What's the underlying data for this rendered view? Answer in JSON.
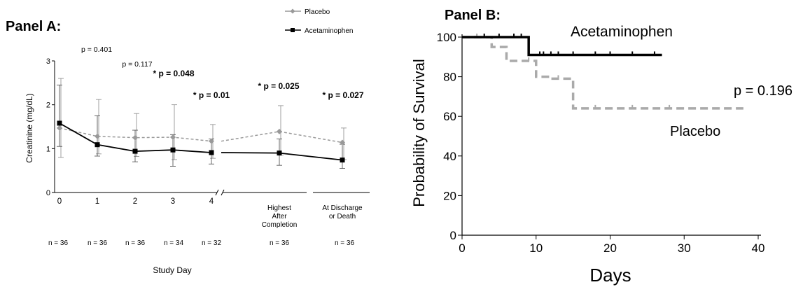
{
  "panels": [
    {
      "title": "Panel A:",
      "chart_data": {
        "type": "line",
        "xlabel": "Study Day",
        "ylabel": "Creatinine (mg/dL)",
        "ylim": [
          0,
          3
        ],
        "yticks": [
          "0",
          "1",
          "2",
          "3"
        ],
        "categories": [
          "0",
          "1",
          "2",
          "3",
          "4",
          "Highest After Completion",
          "At Discharge or Death"
        ],
        "category_lines": [
          [
            "0"
          ],
          [
            "1"
          ],
          [
            "2"
          ],
          [
            "3"
          ],
          [
            "4"
          ],
          [
            "Highest",
            "After",
            "Completion"
          ],
          [
            "At Discharge",
            "or Death"
          ]
        ],
        "legend_position": "top-right",
        "series": [
          {
            "name": "Placebo",
            "color": "#999999",
            "style": "dashed",
            "marker": "diamond",
            "values": [
              1.47,
              1.28,
              1.25,
              1.26,
              1.17,
              1.39,
              1.14
            ],
            "error_upper": [
              2.6,
              2.12,
              1.8,
              2.0,
              1.55,
              1.98,
              1.47
            ],
            "error_lower": [
              0.8,
              0.88,
              0.82,
              0.75,
              0.78,
              0.85,
              0.75
            ]
          },
          {
            "name": "Acetaminophen",
            "color": "#000000",
            "style": "solid",
            "marker": "square",
            "values": [
              1.58,
              1.09,
              0.94,
              0.97,
              0.91,
              0.9,
              0.74
            ],
            "error_upper": [
              2.45,
              1.75,
              1.42,
              1.32,
              1.22,
              1.22,
              1.1
            ],
            "error_lower": [
              1.05,
              0.83,
              0.7,
              0.6,
              0.65,
              0.62,
              0.55
            ]
          }
        ],
        "p_values": [
          "p = 0.401",
          "p = 0.117",
          "* p = 0.048",
          "* p = 0.01",
          "* p = 0.025",
          "* p = 0.027"
        ],
        "n_labels": [
          "n = 36",
          "n = 36",
          "n = 36",
          "n = 34",
          "n = 32",
          "n = 36",
          "n = 36"
        ]
      }
    },
    {
      "title": "Panel B:",
      "chart_data": {
        "type": "line",
        "step": true,
        "xlabel": "Days",
        "ylabel": "Probability of Survival",
        "xlim": [
          0,
          40
        ],
        "ylim": [
          0,
          100
        ],
        "xticks": [
          "0",
          "10",
          "20",
          "30",
          "40"
        ],
        "yticks": [
          "0",
          "20",
          "40",
          "60",
          "80",
          "100"
        ],
        "series": [
          {
            "name": "Acetaminophen",
            "color": "#000000",
            "style": "solid",
            "points": [
              [
                0,
                100
              ],
              [
                9,
                100
              ],
              [
                9,
                91
              ],
              [
                27,
                91
              ]
            ],
            "censored_x": [
              3,
              5,
              7,
              8,
              10.5,
              11,
              12,
              13,
              15,
              18,
              20,
              23,
              26
            ]
          },
          {
            "name": "Placebo",
            "color": "#aaaaaa",
            "style": "dashed",
            "points": [
              [
                0,
                100
              ],
              [
                4,
                100
              ],
              [
                4,
                95
              ],
              [
                6,
                95
              ],
              [
                6,
                88
              ],
              [
                10,
                88
              ],
              [
                10,
                80
              ],
              [
                12,
                80
              ],
              [
                12,
                79
              ],
              [
                15,
                79
              ],
              [
                15,
                64
              ],
              [
                38,
                64
              ]
            ],
            "censored_x": [
              2,
              3,
              9,
              13,
              18,
              23,
              28
            ]
          }
        ],
        "annotation": "p = 0.196"
      }
    }
  ]
}
